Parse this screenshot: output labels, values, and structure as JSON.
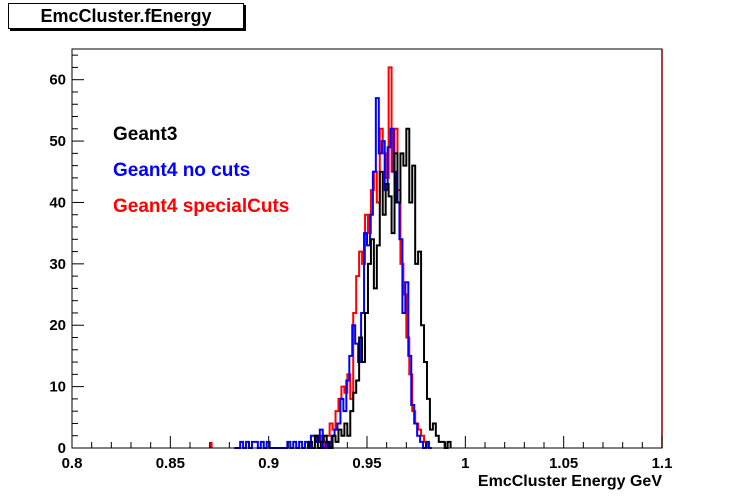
{
  "chart_title": "EmcCluster.fEnergy",
  "chart_data": {
    "type": "line",
    "style": "step-histogram",
    "title": "EmcCluster.fEnergy",
    "xlabel": "EmcCluster Energy GeV",
    "ylabel": "",
    "xlim": [
      0.8,
      1.1
    ],
    "ylim": [
      0,
      65
    ],
    "x_ticks": [
      0.8,
      0.85,
      0.9,
      0.95,
      1.0,
      1.05,
      1.1
    ],
    "x_tick_labels": [
      "0.8",
      "0.85",
      "0.9",
      "0.95",
      "1",
      "1.05",
      "1.1"
    ],
    "y_ticks": [
      0,
      10,
      20,
      30,
      40,
      50,
      60
    ],
    "y_tick_labels": [
      "0",
      "10",
      "20",
      "30",
      "40",
      "50",
      "60"
    ],
    "grid": false,
    "legend_position": "top-left",
    "bin_width": 0.0015,
    "series": [
      {
        "name": "Geant3",
        "color": "#000000",
        "x_start": 0.9205,
        "values": [
          1,
          0,
          2,
          0,
          1,
          2,
          1,
          0,
          2,
          1,
          3,
          2,
          4,
          2,
          6,
          9,
          11,
          18,
          14,
          22,
          30,
          34,
          26,
          33,
          45,
          38,
          43,
          41,
          35,
          48,
          40,
          48,
          46,
          52,
          40,
          46,
          30,
          32,
          20,
          14,
          8,
          3,
          4,
          2,
          1,
          1,
          0,
          1
        ]
      },
      {
        "name": "Geant4 no cuts",
        "color": "#0000ff",
        "x_start": 0.8825,
        "values": [
          0,
          0,
          1,
          0,
          1,
          0,
          1,
          1,
          0,
          1,
          0,
          1,
          0,
          0,
          0,
          0,
          0,
          0,
          1,
          0,
          1,
          0,
          1,
          0,
          1,
          0,
          2,
          2,
          1,
          3,
          0,
          1,
          0,
          2,
          3,
          4,
          8,
          6,
          11,
          15,
          20,
          17,
          14,
          22,
          35,
          33,
          38,
          45,
          57,
          48,
          50,
          42,
          49,
          52,
          45,
          40,
          34,
          22,
          27,
          15,
          7,
          4,
          2,
          1,
          0,
          1,
          0
        ]
      },
      {
        "name": "Geant4 specialCuts",
        "color": "#ff0000",
        "x_start": 0.9205,
        "values": [
          0,
          0,
          2,
          1,
          2,
          0,
          2,
          4,
          3,
          6,
          8,
          10,
          9,
          12,
          8,
          22,
          28,
          32,
          30,
          38,
          35,
          42,
          45,
          40,
          52,
          48,
          44,
          62,
          45,
          52,
          42,
          30,
          25,
          18,
          12,
          6,
          4,
          3,
          2,
          1
        ]
      }
    ],
    "extra_marks": [
      {
        "series": "Geant4 specialCuts",
        "x": 0.87,
        "value": 1
      }
    ]
  },
  "legend": {
    "items": [
      {
        "label": "Geant3",
        "color": "#000000"
      },
      {
        "label": "Geant4 no cuts",
        "color": "#0000ff"
      },
      {
        "label": "Geant4 specialCuts",
        "color": "#ff0000"
      }
    ]
  }
}
